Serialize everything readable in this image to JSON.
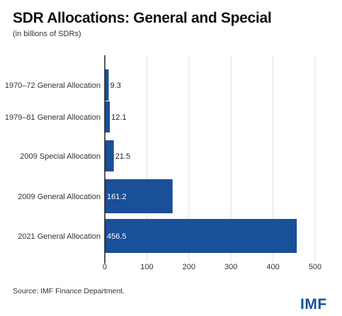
{
  "title": "SDR Allocations: General and Special",
  "subtitle": "(in billions of SDRs)",
  "source": "Source: IMF Finance Department.",
  "logo_text": "IMF",
  "colors": {
    "bar": "#1a4f99",
    "grid": "#e2e2e2",
    "axis": "#222222",
    "label_inside": "#ffffff",
    "label_outside": "#222222"
  },
  "chart_data": {
    "type": "bar",
    "orientation": "horizontal",
    "categories": [
      "1970–72 General Allocation",
      "1979–81 General Allocation",
      "2009 Special Allocation",
      "2009 General Allocation",
      "2021 General Allocation"
    ],
    "values": [
      9.3,
      12.1,
      21.5,
      161.2,
      456.5
    ],
    "value_labels": [
      "9.3",
      "12.1",
      "21.5",
      "161.2",
      "456.5"
    ],
    "xticks": [
      0,
      100,
      200,
      300,
      400,
      500
    ],
    "xtick_labels": [
      "0",
      "100",
      "200",
      "300",
      "400",
      "500"
    ],
    "xlim": [
      0,
      500
    ],
    "grid": true,
    "legend": "none"
  }
}
